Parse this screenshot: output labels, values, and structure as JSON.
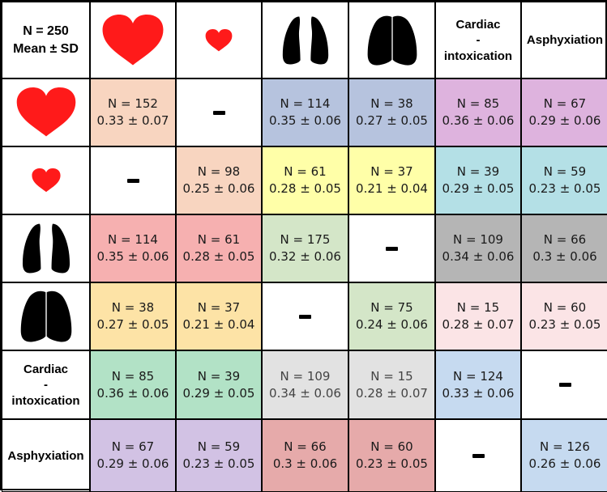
{
  "corner": {
    "line1": "N = 250",
    "line2": "Mean ± SD"
  },
  "header_cols": [
    {
      "kind": "icon",
      "icon": "large-heart-icon"
    },
    {
      "kind": "icon",
      "icon": "small-heart-icon"
    },
    {
      "kind": "icon",
      "icon": "lungs-separated-icon"
    },
    {
      "kind": "icon",
      "icon": "lungs-joined-icon"
    },
    {
      "kind": "text",
      "lines": [
        "Cardiac",
        "-",
        "intoxication"
      ]
    },
    {
      "kind": "text",
      "lines": [
        "Asphyxiation"
      ]
    }
  ],
  "header_rows": [
    {
      "kind": "icon",
      "icon": "large-heart-icon"
    },
    {
      "kind": "icon",
      "icon": "small-heart-icon"
    },
    {
      "kind": "icon",
      "icon": "lungs-separated-icon"
    },
    {
      "kind": "icon",
      "icon": "lungs-joined-icon"
    },
    {
      "kind": "text",
      "lines": [
        "Cardiac",
        "-",
        "intoxication"
      ]
    },
    {
      "kind": "text",
      "lines": [
        "Asphyxiation"
      ]
    }
  ],
  "colors": {
    "heart": "#ff1a1a",
    "lungs": "#000000"
  },
  "rows": [
    [
      {
        "n": "N = 152",
        "stat": "0.33 ± 0.07",
        "color": "#f8d5c0"
      },
      {
        "empty": true,
        "color": "#ffffff"
      },
      {
        "n": "N = 114",
        "stat": "0.35 ± 0.06",
        "color": "#b6c3de"
      },
      {
        "n": "N = 38",
        "stat": "0.27 ± 0.05",
        "color": "#b6c3de"
      },
      {
        "n": "N = 85",
        "stat": "0.36 ± 0.06",
        "color": "#deb3de"
      },
      {
        "n": "N = 67",
        "stat": "0.29 ± 0.06",
        "color": "#deb3de"
      }
    ],
    [
      {
        "empty": true,
        "color": "#ffffff"
      },
      {
        "n": "N = 98",
        "stat": "0.25 ± 0.06",
        "color": "#f8d5c0"
      },
      {
        "n": "N = 61",
        "stat": "0.28 ± 0.05",
        "color": "#ffffa8"
      },
      {
        "n": "N = 37",
        "stat": "0.21 ± 0.04",
        "color": "#ffffa8"
      },
      {
        "n": "N = 39",
        "stat": "0.29 ± 0.05",
        "color": "#b4e0e6"
      },
      {
        "n": "N = 59",
        "stat": "0.23 ± 0.05",
        "color": "#b4e0e6"
      }
    ],
    [
      {
        "n": "N = 114",
        "stat": "0.35 ± 0.06",
        "color": "#f6b0b0"
      },
      {
        "n": "N = 61",
        "stat": "0.28 ± 0.05",
        "color": "#f6b0b0"
      },
      {
        "n": "N = 175",
        "stat": "0.32 ± 0.06",
        "color": "#d4e6c8"
      },
      {
        "empty": true,
        "color": "#ffffff"
      },
      {
        "n": "N = 109",
        "stat": "0.34 ± 0.06",
        "color": "#b5b5b5"
      },
      {
        "n": "N = 66",
        "stat": "0.3 ± 0.06",
        "color": "#b5b5b5"
      }
    ],
    [
      {
        "n": "N = 38",
        "stat": "0.27 ± 0.05",
        "color": "#fde3a6"
      },
      {
        "n": "N = 37",
        "stat": "0.21 ± 0.04",
        "color": "#fde3a6"
      },
      {
        "empty": true,
        "color": "#ffffff"
      },
      {
        "n": "N = 75",
        "stat": "0.24 ± 0.06",
        "color": "#d4e6c8"
      },
      {
        "n": "N = 15",
        "stat": "0.28 ± 0.07",
        "color": "#fbe4e6"
      },
      {
        "n": "N = 60",
        "stat": "0.23 ± 0.05",
        "color": "#fbe4e6"
      }
    ],
    [
      {
        "n": "N = 85",
        "stat": "0.36 ± 0.06",
        "color": "#b2e2c6"
      },
      {
        "n": "N = 39",
        "stat": "0.29 ± 0.05",
        "color": "#b2e2c6"
      },
      {
        "n": "N = 109",
        "stat": "0.34 ± 0.06",
        "color": "#e2e2e2",
        "muted": true
      },
      {
        "n": "N = 15",
        "stat": "0.28 ± 0.07",
        "color": "#e2e2e2",
        "muted": true
      },
      {
        "n": "N = 124",
        "stat": "0.33 ± 0.06",
        "color": "#c6daf0"
      },
      {
        "empty": true,
        "color": "#ffffff"
      }
    ],
    [
      {
        "n": "N = 67",
        "stat": "0.29 ± 0.06",
        "color": "#d2c2e4"
      },
      {
        "n": "N = 59",
        "stat": "0.23 ± 0.05",
        "color": "#d2c2e4"
      },
      {
        "n": "N = 66",
        "stat": "0.3 ± 0.06",
        "color": "#e6aaaa"
      },
      {
        "n": "N = 60",
        "stat": "0.23 ± 0.05",
        "color": "#e6aaaa"
      },
      {
        "empty": true,
        "color": "#ffffff"
      },
      {
        "n": "N = 126",
        "stat": "0.26 ± 0.06",
        "color": "#c6daf0"
      }
    ]
  ]
}
